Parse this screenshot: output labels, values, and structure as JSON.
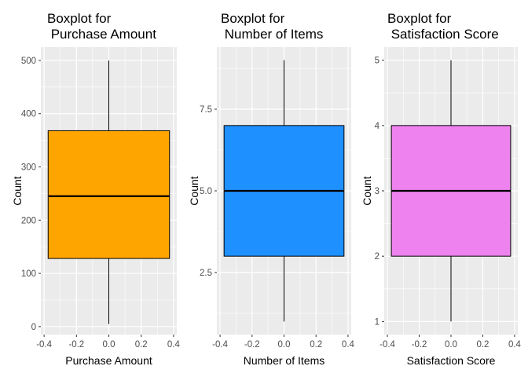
{
  "chart_data": [
    {
      "type": "boxplot",
      "title": "Boxplot for\n Purchase Amount",
      "xlabel": "Purchase Amount",
      "ylabel": "Count",
      "xlim": [
        -0.42,
        0.42
      ],
      "ylim": [
        -15,
        525
      ],
      "x_ticks": [
        -0.4,
        -0.2,
        0.0,
        0.2,
        0.4
      ],
      "x_tick_labels": [
        "-0.4",
        "-0.2",
        "0.0",
        "0.2",
        "0.4"
      ],
      "y_ticks": [
        0,
        100,
        200,
        300,
        400,
        500
      ],
      "y_tick_labels": [
        "0",
        "100",
        "200",
        "300",
        "400",
        "500"
      ],
      "box_x_range": [
        -0.375,
        0.375
      ],
      "whisker_low": 5,
      "q1": 128,
      "median": 245,
      "q3": 368,
      "whisker_high": 500,
      "fill": "#FFA500",
      "grid": true
    },
    {
      "type": "boxplot",
      "title": "Boxplot for\n Number of Items",
      "xlabel": "Number of Items",
      "ylabel": "Count",
      "xlim": [
        -0.42,
        0.42
      ],
      "ylim": [
        0.6,
        9.4
      ],
      "x_ticks": [
        -0.4,
        -0.2,
        0.0,
        0.2,
        0.4
      ],
      "x_tick_labels": [
        "-0.4",
        "-0.2",
        "0.0",
        "0.2",
        "0.4"
      ],
      "y_ticks": [
        2.5,
        5.0,
        7.5
      ],
      "y_tick_labels": [
        "2.5",
        "5.0",
        "7.5"
      ],
      "box_x_range": [
        -0.375,
        0.375
      ],
      "whisker_low": 1,
      "q1": 3,
      "median": 5,
      "q3": 7,
      "whisker_high": 9,
      "fill": "#1E90FF",
      "grid": true
    },
    {
      "type": "boxplot",
      "title": "Boxplot for\n Satisfaction Score",
      "xlabel": "Satisfaction Score",
      "ylabel": "Count",
      "xlim": [
        -0.42,
        0.42
      ],
      "ylim": [
        0.8,
        5.2
      ],
      "x_ticks": [
        -0.4,
        -0.2,
        0.0,
        0.2,
        0.4
      ],
      "x_tick_labels": [
        "-0.4",
        "-0.2",
        "0.0",
        "0.2",
        "0.4"
      ],
      "y_ticks": [
        1,
        2,
        3,
        4,
        5
      ],
      "y_tick_labels": [
        "1",
        "2",
        "3",
        "4",
        "5"
      ],
      "box_x_range": [
        -0.375,
        0.375
      ],
      "whisker_low": 1,
      "q1": 2,
      "median": 3,
      "q3": 4,
      "whisker_high": 5,
      "fill": "#EE82EE",
      "grid": true
    }
  ],
  "colors": {
    "panel_background": "#EBEBEB",
    "grid_line": "#FFFFFF",
    "box_outline": "#000000",
    "tick_text": "#4D4D4D"
  }
}
